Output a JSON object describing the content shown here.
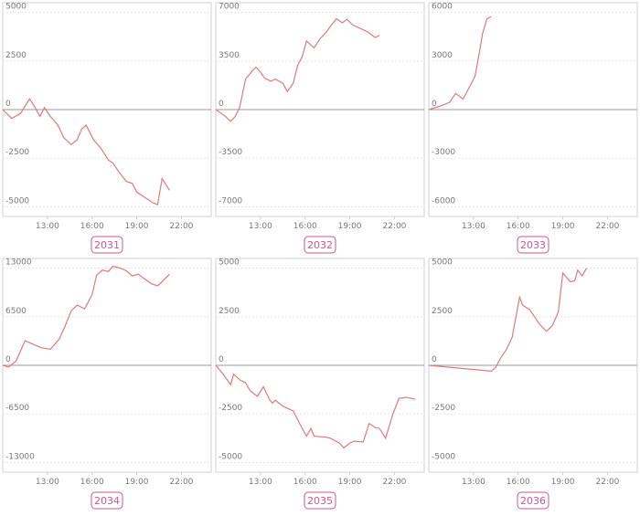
{
  "chart_data": [
    {
      "type": "line",
      "title": "2031",
      "color": "#e07a7a",
      "grid": true,
      "x": [
        10.0,
        10.6,
        11.2,
        11.8,
        12.1,
        12.5,
        12.8,
        13.2,
        13.7,
        14.1,
        14.6,
        15.0,
        15.3,
        15.6,
        16.1,
        16.6,
        17.1,
        17.4,
        17.8,
        18.3,
        18.7,
        19.0,
        19.6,
        20.1,
        20.4,
        20.7,
        21.2
      ],
      "values": [
        0,
        -450,
        -200,
        550,
        200,
        -350,
        100,
        -350,
        -800,
        -1450,
        -1800,
        -1550,
        -1000,
        -800,
        -1550,
        -2000,
        -2600,
        -2750,
        -3200,
        -3700,
        -3800,
        -4250,
        -4550,
        -4800,
        -4900,
        -3550,
        -4150
      ],
      "xlim": [
        10,
        24
      ],
      "xticks": [
        {
          "value": 13,
          "label": "13:00"
        },
        {
          "value": 16,
          "label": "16:00"
        },
        {
          "value": 19,
          "label": "19:00"
        },
        {
          "value": 22,
          "label": "22:00"
        }
      ],
      "ylim": [
        -5500,
        5500
      ],
      "yticks": [
        -5000,
        -2500,
        0,
        2500,
        5000
      ]
    },
    {
      "type": "line",
      "title": "2032",
      "color": "#e07a7a",
      "grid": true,
      "x": [
        10.0,
        10.6,
        11.0,
        11.3,
        11.6,
        12.0,
        12.5,
        12.7,
        13.0,
        13.3,
        13.7,
        14.0,
        14.5,
        14.8,
        15.2,
        15.5,
        15.8,
        16.1,
        16.6,
        17.0,
        17.4,
        17.7,
        18.1,
        18.5,
        18.8,
        19.2,
        19.7,
        20.2,
        20.7,
        21.0
      ],
      "values": [
        0,
        -450,
        -850,
        -500,
        150,
        2200,
        2850,
        3050,
        2700,
        2250,
        2050,
        2200,
        1900,
        1300,
        1900,
        3200,
        3800,
        4950,
        4450,
        5100,
        5550,
        6000,
        6550,
        6250,
        6500,
        6100,
        5850,
        5600,
        5200,
        5350
      ],
      "xlim": [
        10,
        24
      ],
      "xticks": [
        {
          "value": 13,
          "label": "13:00"
        },
        {
          "value": 16,
          "label": "16:00"
        },
        {
          "value": 19,
          "label": "19:00"
        },
        {
          "value": 22,
          "label": "22:00"
        }
      ],
      "ylim": [
        -7700,
        7700
      ],
      "yticks": [
        -7000,
        -3500,
        0,
        3500,
        7000
      ]
    },
    {
      "type": "line",
      "title": "2033",
      "color": "#e07a7a",
      "grid": true,
      "x": [
        10.0,
        10.7,
        11.4,
        11.8,
        12.3,
        12.7,
        13.1,
        13.4,
        13.6,
        13.9,
        14.2
      ],
      "values": [
        0,
        200,
        450,
        1000,
        650,
        1350,
        2050,
        3550,
        4650,
        5600,
        5750
      ],
      "xlim": [
        10,
        24
      ],
      "xticks": [
        {
          "value": 13,
          "label": "13:00"
        },
        {
          "value": 16,
          "label": "16:00"
        },
        {
          "value": 19,
          "label": "19:00"
        },
        {
          "value": 22,
          "label": "22:00"
        }
      ],
      "ylim": [
        -6600,
        6600
      ],
      "yticks": [
        -6000,
        -3000,
        0,
        3000,
        6000
      ]
    },
    {
      "type": "line",
      "title": "2034",
      "color": "#e07a7a",
      "grid": true,
      "x": [
        10.0,
        10.4,
        10.9,
        11.5,
        12.0,
        12.6,
        13.2,
        13.8,
        14.2,
        14.6,
        15.0,
        15.5,
        16.0,
        16.3,
        16.7,
        17.1,
        17.4,
        17.9,
        18.3,
        18.7,
        19.1,
        19.5,
        20.0,
        20.4,
        20.7,
        21.2
      ],
      "values": [
        0,
        -250,
        600,
        3300,
        2850,
        2350,
        2150,
        3550,
        5300,
        7300,
        8050,
        7550,
        9450,
        12050,
        12750,
        12550,
        13250,
        13000,
        12650,
        11950,
        12200,
        11600,
        10900,
        10650,
        11200,
        12200
      ],
      "xlim": [
        10,
        24
      ],
      "xticks": [
        {
          "value": 13,
          "label": "13:00"
        },
        {
          "value": 16,
          "label": "16:00"
        },
        {
          "value": 19,
          "label": "19:00"
        },
        {
          "value": 22,
          "label": "22:00"
        }
      ],
      "ylim": [
        -14300,
        14300
      ],
      "yticks": [
        -13000,
        -6500,
        0,
        6500,
        13000
      ]
    },
    {
      "type": "line",
      "title": "2035",
      "color": "#e07a7a",
      "grid": true,
      "x": [
        10.0,
        10.5,
        11.0,
        11.2,
        11.6,
        12.0,
        12.3,
        12.8,
        13.2,
        13.6,
        13.8,
        14.0,
        14.5,
        15.2,
        15.5,
        15.8,
        16.1,
        16.4,
        16.6,
        17.4,
        17.7,
        18.3,
        18.6,
        19.0,
        19.3,
        19.9,
        20.3,
        20.7,
        21.0,
        21.4,
        21.9,
        22.3,
        22.8,
        23.4
      ],
      "values": [
        0,
        -450,
        -1000,
        -450,
        -750,
        -900,
        -1300,
        -1600,
        -1100,
        -1750,
        -1950,
        -1800,
        -2100,
        -2350,
        -2800,
        -3250,
        -3650,
        -3250,
        -3650,
        -3700,
        -3750,
        -4000,
        -4250,
        -4000,
        -3900,
        -3950,
        -3000,
        -3200,
        -3250,
        -3750,
        -2500,
        -1700,
        -1650,
        -1750
      ],
      "xlim": [
        10,
        24
      ],
      "xticks": [
        {
          "value": 13,
          "label": "13:00"
        },
        {
          "value": 16,
          "label": "16:00"
        },
        {
          "value": 19,
          "label": "19:00"
        },
        {
          "value": 22,
          "label": "22:00"
        }
      ],
      "ylim": [
        -5500,
        5500
      ],
      "yticks": [
        -5000,
        -2500,
        0,
        2500,
        5000
      ]
    },
    {
      "type": "line",
      "title": "2036",
      "color": "#e07a7a",
      "grid": true,
      "x": [
        10.0,
        14.2,
        14.5,
        14.8,
        15.2,
        15.6,
        15.8,
        16.1,
        16.3,
        16.8,
        17.4,
        17.9,
        18.3,
        18.7,
        19.0,
        19.5,
        19.8,
        20.0,
        20.3,
        20.6
      ],
      "values": [
        0,
        -300,
        -100,
        350,
        800,
        1450,
        2300,
        3500,
        3100,
        2850,
        2150,
        1750,
        2050,
        2750,
        4750,
        4300,
        4350,
        4900,
        4600,
        5000
      ],
      "xlim": [
        10,
        24
      ],
      "xticks": [
        {
          "value": 13,
          "label": "13:00"
        },
        {
          "value": 16,
          "label": "16:00"
        },
        {
          "value": 19,
          "label": "19:00"
        },
        {
          "value": 22,
          "label": "22:00"
        }
      ],
      "ylim": [
        -5500,
        5500
      ],
      "yticks": [
        -5000,
        -2500,
        0,
        2500,
        5000
      ]
    }
  ]
}
